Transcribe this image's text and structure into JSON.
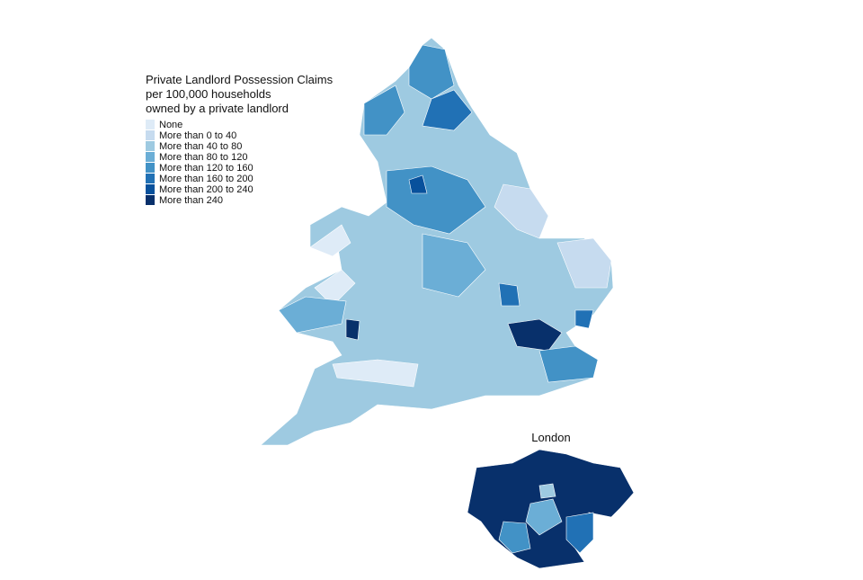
{
  "title_lines": [
    "Private Landlord Possession Claims",
    "per 100,000 households",
    "owned by a private landlord"
  ],
  "legend": [
    {
      "label": "None",
      "color": "#deebf7"
    },
    {
      "label": "More than 0 to 40",
      "color": "#c6dbef"
    },
    {
      "label": "More than 40 to 80",
      "color": "#9ecae1"
    },
    {
      "label": "More than 80 to 120",
      "color": "#6baed6"
    },
    {
      "label": "More than 120 to 160",
      "color": "#4292c6"
    },
    {
      "label": "More than 160 to 200",
      "color": "#2171b5"
    },
    {
      "label": "More than 200 to 240",
      "color": "#08519c"
    },
    {
      "label": "More than 240",
      "color": "#08306b"
    }
  ],
  "inset_title": "London"
}
